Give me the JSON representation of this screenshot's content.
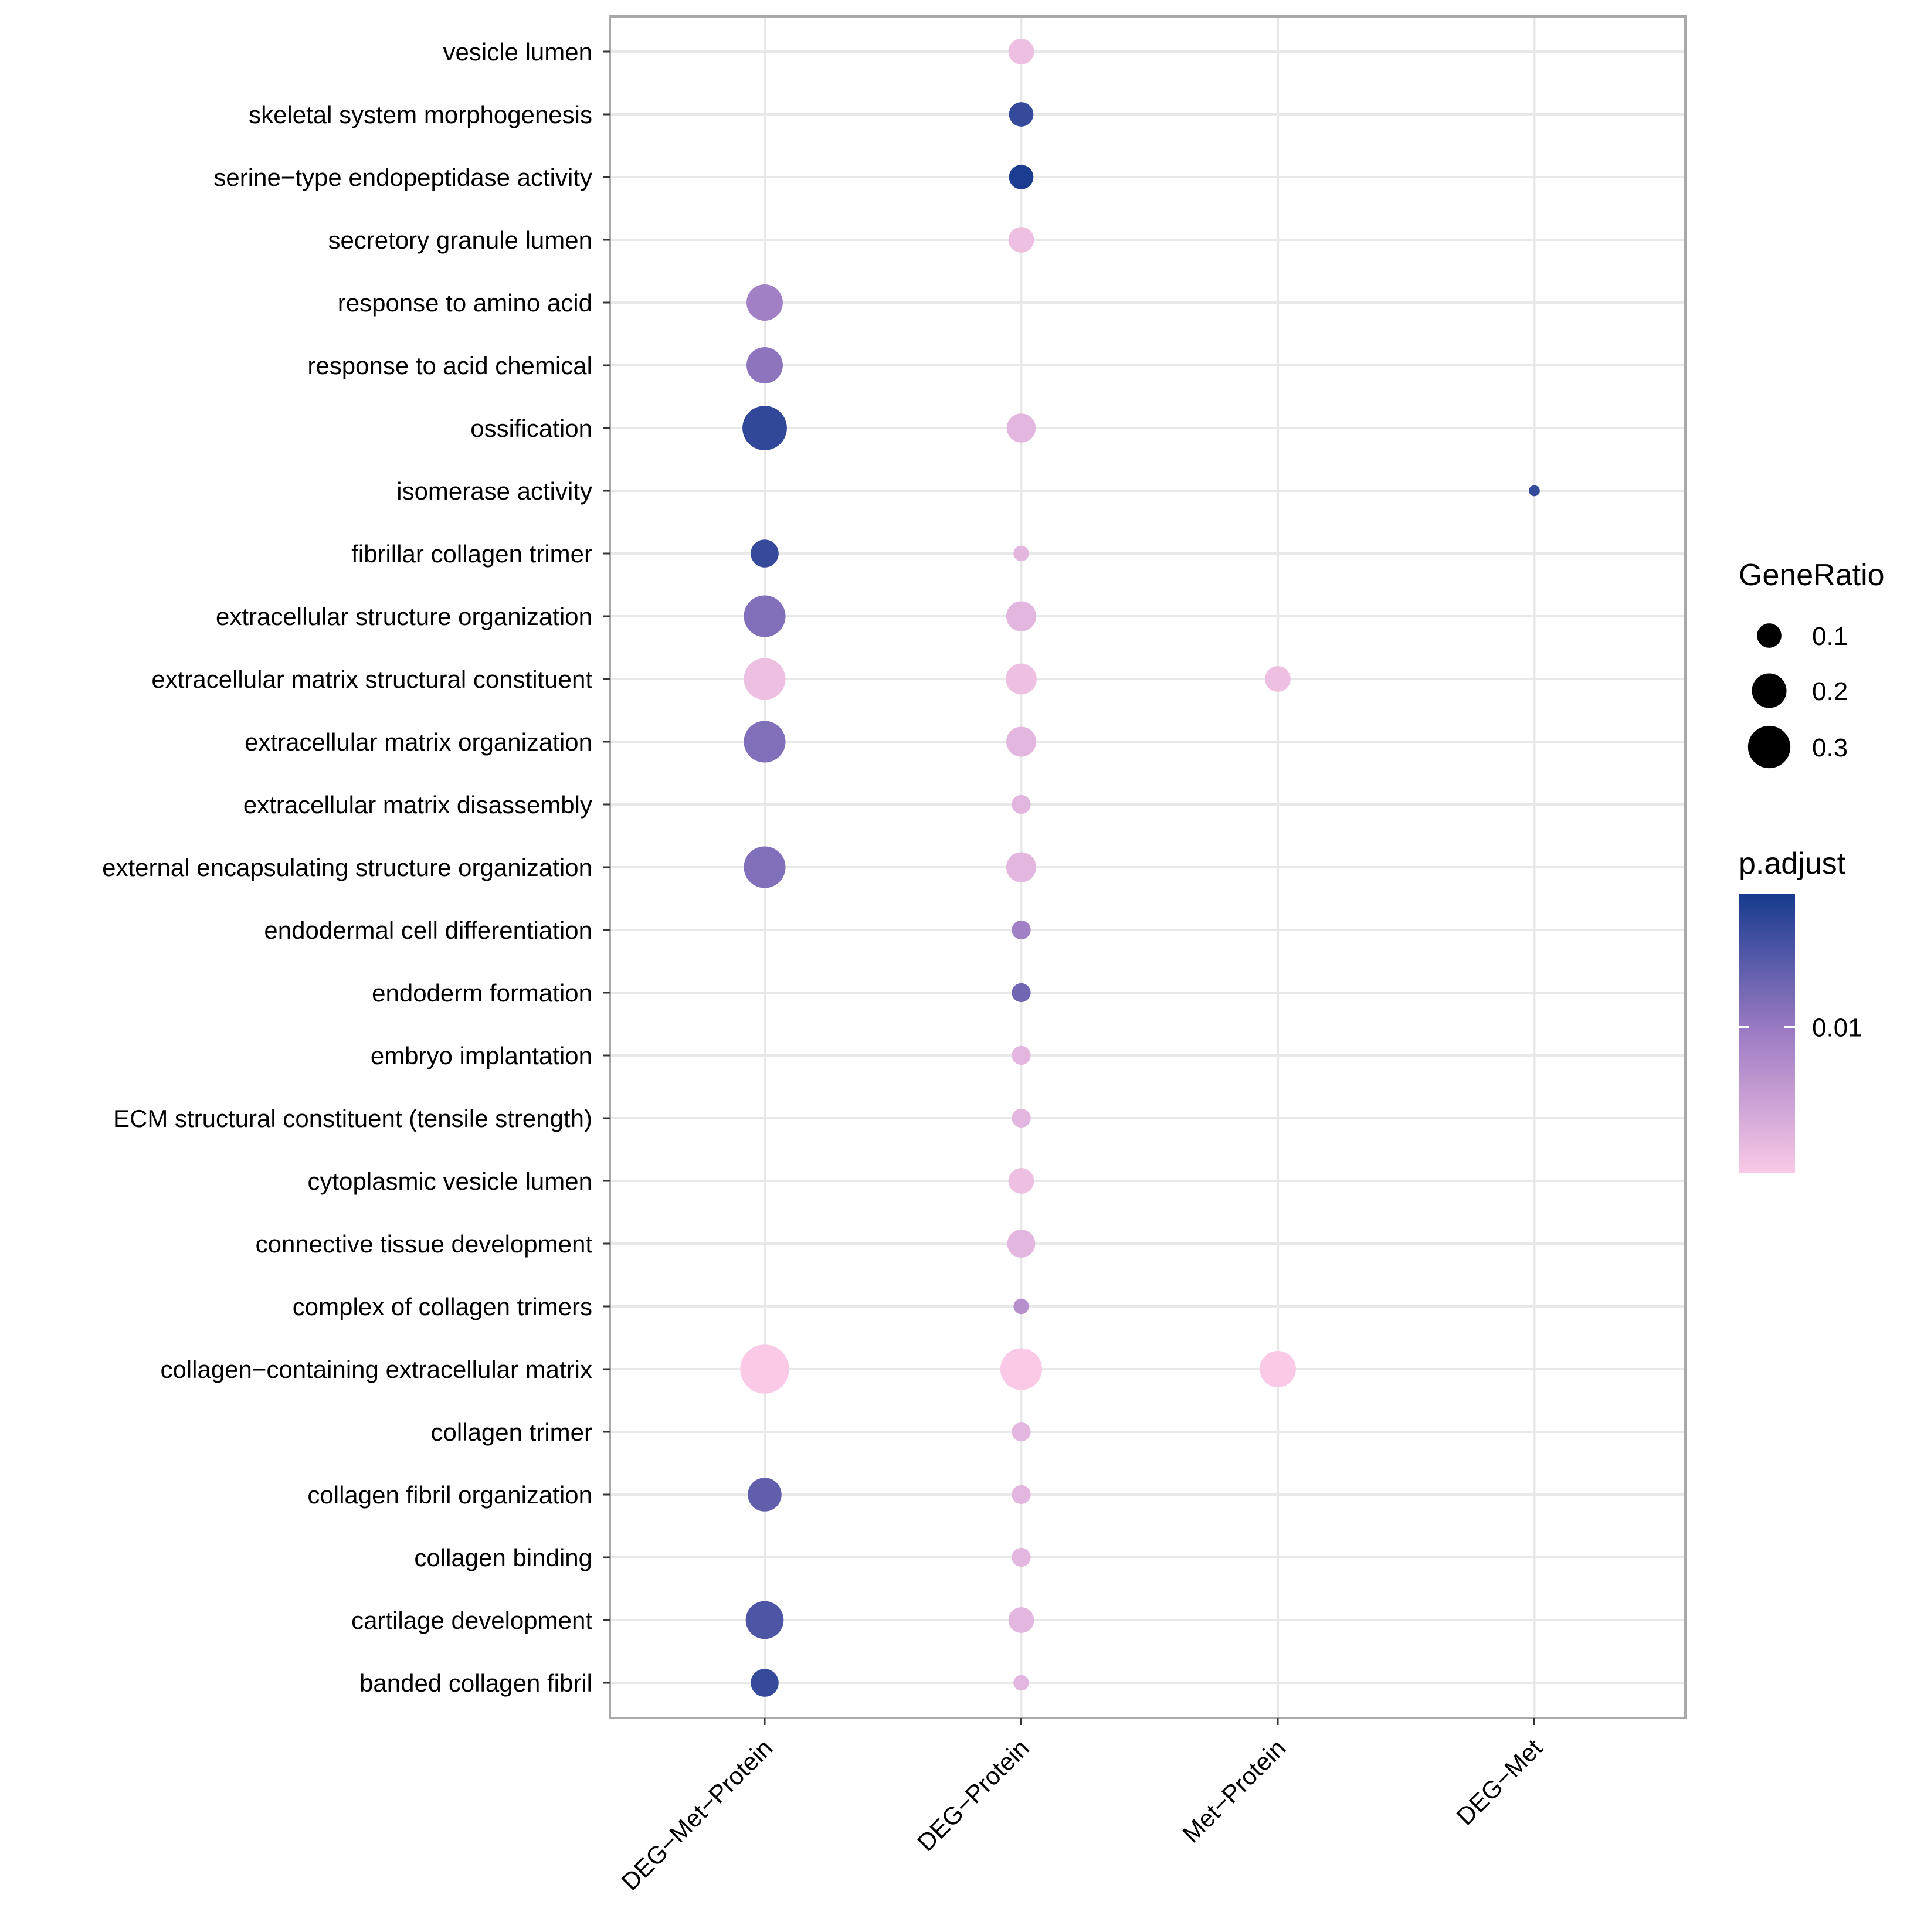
{
  "chart_data": {
    "type": "dotplot",
    "categories": [
      "DEG−Met−Protein",
      "DEG−Protein",
      "Met−Protein",
      "DEG−Met"
    ],
    "terms": [
      "vesicle lumen",
      "skeletal system morphogenesis",
      "serine−type endopeptidase activity",
      "secretory granule lumen",
      "response to amino acid",
      "response to acid chemical",
      "ossification",
      "isomerase activity",
      "fibrillar collagen trimer",
      "extracellular structure organization",
      "extracellular matrix structural constituent",
      "extracellular matrix organization",
      "extracellular matrix disassembly",
      "external encapsulating structure organization",
      "endodermal cell differentiation",
      "endoderm formation",
      "embryo implantation",
      "ECM structural constituent (tensile strength)",
      "cytoplasmic vesicle lumen",
      "connective tissue development",
      "complex of collagen trimers",
      "collagen−containing extracellular matrix",
      "collagen trimer",
      "collagen fibril organization",
      "collagen binding",
      "cartilage development",
      "banded collagen fibril"
    ],
    "points": [
      {
        "term": "vesicle lumen",
        "category": "DEG−Protein",
        "gene_ratio": 0.11,
        "p_adjust": 0.0035
      },
      {
        "term": "skeletal system morphogenesis",
        "category": "DEG−Protein",
        "gene_ratio": 0.1,
        "p_adjust": 0.023
      },
      {
        "term": "serine−type endopeptidase activity",
        "category": "DEG−Protein",
        "gene_ratio": 0.1,
        "p_adjust": 0.029
      },
      {
        "term": "secretory granule lumen",
        "category": "DEG−Protein",
        "gene_ratio": 0.11,
        "p_adjust": 0.0035
      },
      {
        "term": "response to amino acid",
        "category": "DEG−Met−Protein",
        "gene_ratio": 0.22,
        "p_adjust": 0.009
      },
      {
        "term": "response to acid chemical",
        "category": "DEG−Met−Protein",
        "gene_ratio": 0.22,
        "p_adjust": 0.011
      },
      {
        "term": "ossification",
        "category": "DEG−Met−Protein",
        "gene_ratio": 0.33,
        "p_adjust": 0.024
      },
      {
        "term": "ossification",
        "category": "DEG−Protein",
        "gene_ratio": 0.14,
        "p_adjust": 0.004
      },
      {
        "term": "isomerase activity",
        "category": "DEG−Met",
        "gene_ratio": 0.02,
        "p_adjust": 0.023
      },
      {
        "term": "fibrillar collagen trimer",
        "category": "DEG−Met−Protein",
        "gene_ratio": 0.13,
        "p_adjust": 0.023
      },
      {
        "term": "fibrillar collagen trimer",
        "category": "DEG−Protein",
        "gene_ratio": 0.04,
        "p_adjust": 0.004
      },
      {
        "term": "extracellular structure organization",
        "category": "DEG−Met−Protein",
        "gene_ratio": 0.29,
        "p_adjust": 0.012
      },
      {
        "term": "extracellular structure organization",
        "category": "DEG−Protein",
        "gene_ratio": 0.15,
        "p_adjust": 0.004
      },
      {
        "term": "extracellular matrix structural constituent",
        "category": "DEG−Met−Protein",
        "gene_ratio": 0.29,
        "p_adjust": 0.0035
      },
      {
        "term": "extracellular matrix structural constituent",
        "category": "DEG−Protein",
        "gene_ratio": 0.16,
        "p_adjust": 0.0035
      },
      {
        "term": "extracellular matrix structural constituent",
        "category": "Met−Protein",
        "gene_ratio": 0.11,
        "p_adjust": 0.0035
      },
      {
        "term": "extracellular matrix organization",
        "category": "DEG−Met−Protein",
        "gene_ratio": 0.29,
        "p_adjust": 0.012
      },
      {
        "term": "extracellular matrix organization",
        "category": "DEG−Protein",
        "gene_ratio": 0.15,
        "p_adjust": 0.004
      },
      {
        "term": "extracellular matrix disassembly",
        "category": "DEG−Protein",
        "gene_ratio": 0.06,
        "p_adjust": 0.004
      },
      {
        "term": "external encapsulating structure organization",
        "category": "DEG−Met−Protein",
        "gene_ratio": 0.29,
        "p_adjust": 0.012
      },
      {
        "term": "external encapsulating structure organization",
        "category": "DEG−Protein",
        "gene_ratio": 0.15,
        "p_adjust": 0.004
      },
      {
        "term": "endodermal cell differentiation",
        "category": "DEG−Protein",
        "gene_ratio": 0.06,
        "p_adjust": 0.009
      },
      {
        "term": "endoderm formation",
        "category": "DEG−Protein",
        "gene_ratio": 0.06,
        "p_adjust": 0.014
      },
      {
        "term": "embryo implantation",
        "category": "DEG−Protein",
        "gene_ratio": 0.06,
        "p_adjust": 0.004
      },
      {
        "term": "ECM structural constituent (tensile strength)",
        "category": "DEG−Protein",
        "gene_ratio": 0.06,
        "p_adjust": 0.004
      },
      {
        "term": "cytoplasmic vesicle lumen",
        "category": "DEG−Protein",
        "gene_ratio": 0.11,
        "p_adjust": 0.0035
      },
      {
        "term": "connective tissue development",
        "category": "DEG−Protein",
        "gene_ratio": 0.13,
        "p_adjust": 0.004
      },
      {
        "term": "complex of collagen trimers",
        "category": "DEG−Protein",
        "gene_ratio": 0.04,
        "p_adjust": 0.007
      },
      {
        "term": "collagen−containing extracellular matrix",
        "category": "DEG−Met−Protein",
        "gene_ratio": 0.4,
        "p_adjust": 0.003
      },
      {
        "term": "collagen−containing extracellular matrix",
        "category": "DEG−Protein",
        "gene_ratio": 0.29,
        "p_adjust": 0.003
      },
      {
        "term": "collagen−containing extracellular matrix",
        "category": "Met−Protein",
        "gene_ratio": 0.22,
        "p_adjust": 0.003
      },
      {
        "term": "collagen trimer",
        "category": "DEG−Protein",
        "gene_ratio": 0.06,
        "p_adjust": 0.004
      },
      {
        "term": "collagen fibril organization",
        "category": "DEG−Met−Protein",
        "gene_ratio": 0.19,
        "p_adjust": 0.016
      },
      {
        "term": "collagen fibril organization",
        "category": "DEG−Protein",
        "gene_ratio": 0.06,
        "p_adjust": 0.004
      },
      {
        "term": "collagen binding",
        "category": "DEG−Protein",
        "gene_ratio": 0.06,
        "p_adjust": 0.004
      },
      {
        "term": "cartilage development",
        "category": "DEG−Met−Protein",
        "gene_ratio": 0.24,
        "p_adjust": 0.019
      },
      {
        "term": "cartilage development",
        "category": "DEG−Protein",
        "gene_ratio": 0.11,
        "p_adjust": 0.004
      },
      {
        "term": "banded collagen fibril",
        "category": "DEG−Met−Protein",
        "gene_ratio": 0.13,
        "p_adjust": 0.023
      },
      {
        "term": "banded collagen fibril",
        "category": "DEG−Protein",
        "gene_ratio": 0.04,
        "p_adjust": 0.004
      }
    ],
    "size_legend": {
      "title": "GeneRatio",
      "breaks": [
        0.1,
        0.2,
        0.3
      ],
      "labels": [
        "0.1",
        "0.2",
        "0.3"
      ]
    },
    "color_legend": {
      "title": "p.adjust",
      "low_color": "#f9c9e6",
      "mid_color": "#9e7cc4",
      "high_color": "#173b8f",
      "range": [
        0.003,
        0.03
      ],
      "tick_values": [
        0.01
      ],
      "tick_labels": [
        "0.01"
      ]
    },
    "grid": true
  }
}
